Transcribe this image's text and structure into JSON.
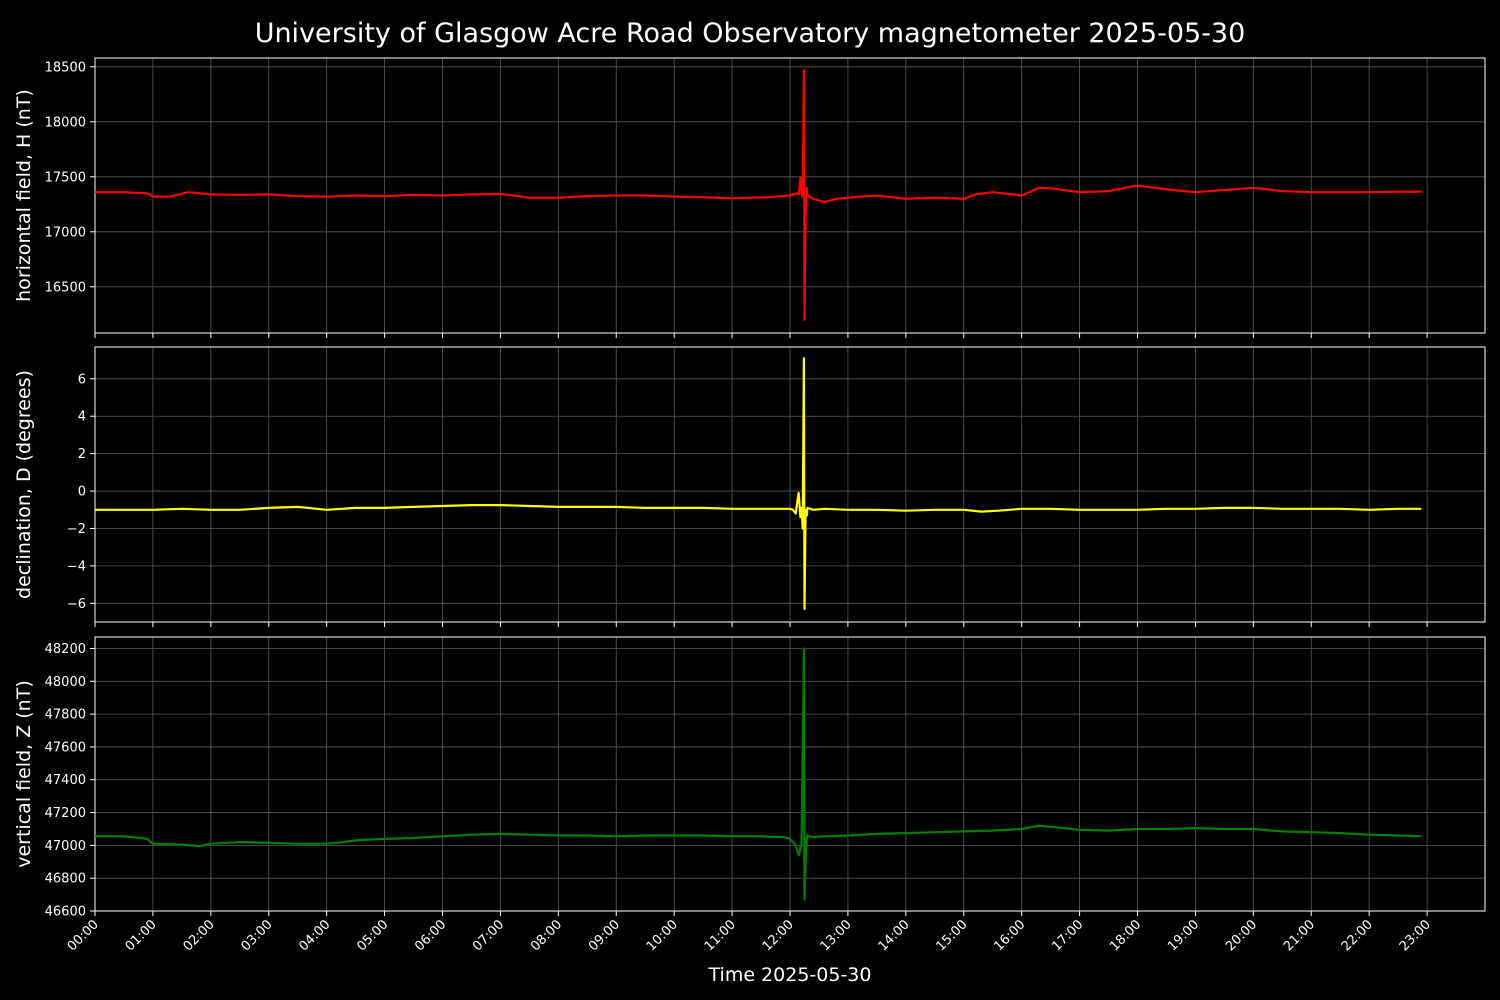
{
  "chart_data": {
    "type": "line",
    "title": "University of Glasgow Acre Road Observatory magnetometer 2025-05-30",
    "xlabel": "Time 2025-05-30",
    "x_unit": "hours",
    "xlim": [
      0,
      24
    ],
    "xticks": [
      "00:00",
      "01:00",
      "02:00",
      "03:00",
      "04:00",
      "05:00",
      "06:00",
      "07:00",
      "08:00",
      "09:00",
      "10:00",
      "11:00",
      "12:00",
      "13:00",
      "14:00",
      "15:00",
      "16:00",
      "17:00",
      "18:00",
      "19:00",
      "20:00",
      "21:00",
      "22:00",
      "23:00"
    ],
    "grid": true,
    "background": "#000000",
    "panels": [
      {
        "name": "horizontal",
        "ylabel": "horizontal field, H (nT)",
        "color": "#ff0000",
        "ylim": [
          16080,
          18580
        ],
        "yticks": [
          16500,
          17000,
          17500,
          18000,
          18500
        ],
        "series": {
          "x": [
            0,
            0.5,
            0.9,
            1.0,
            1.3,
            1.6,
            2.0,
            2.5,
            3.0,
            3.5,
            4.0,
            4.5,
            5.0,
            5.5,
            6.0,
            6.5,
            7.0,
            7.5,
            8.0,
            8.5,
            9.0,
            9.5,
            10.0,
            10.5,
            11.0,
            11.3,
            11.6,
            12.0,
            12.1,
            12.15,
            12.18,
            12.2,
            12.22,
            12.24,
            12.25,
            12.27,
            12.29,
            12.3,
            12.4,
            12.6,
            12.8,
            13.0,
            13.5,
            14.0,
            14.5,
            15.0,
            15.2,
            15.5,
            16.0,
            16.3,
            16.5,
            17.0,
            17.5,
            18.0,
            18.5,
            19.0,
            19.5,
            20.0,
            20.5,
            21.0,
            21.5,
            22.0,
            22.5,
            22.9
          ],
          "y": [
            17360,
            17360,
            17350,
            17320,
            17320,
            17360,
            17340,
            17335,
            17340,
            17325,
            17320,
            17330,
            17325,
            17335,
            17330,
            17340,
            17345,
            17310,
            17310,
            17325,
            17330,
            17330,
            17320,
            17315,
            17305,
            17310,
            17315,
            17330,
            17350,
            17340,
            17490,
            17340,
            17320,
            18470,
            16200,
            17150,
            17400,
            17330,
            17300,
            17270,
            17300,
            17310,
            17330,
            17300,
            17310,
            17300,
            17340,
            17360,
            17330,
            17400,
            17395,
            17360,
            17370,
            17420,
            17385,
            17360,
            17380,
            17400,
            17370,
            17360,
            17360,
            17360,
            17365,
            17365
          ]
        }
      },
      {
        "name": "declination",
        "ylabel": "declination, D (degrees)",
        "color": "#ffff00",
        "ylim": [
          -7.0,
          7.7
        ],
        "yticks": [
          -6,
          -4,
          -2,
          0,
          2,
          4,
          6
        ],
        "series": {
          "x": [
            0,
            0.5,
            1.0,
            1.5,
            2.0,
            2.5,
            3.0,
            3.5,
            4.0,
            4.5,
            5.0,
            5.5,
            6.0,
            6.5,
            7.0,
            7.5,
            8.0,
            8.5,
            9.0,
            9.5,
            10.0,
            10.5,
            11.0,
            11.5,
            12.0,
            12.05,
            12.1,
            12.13,
            12.15,
            12.18,
            12.2,
            12.22,
            12.24,
            12.25,
            12.27,
            12.29,
            12.3,
            12.4,
            12.6,
            13.0,
            13.5,
            14.0,
            14.5,
            15.0,
            15.3,
            15.6,
            16.0,
            16.5,
            17.0,
            17.5,
            18.0,
            18.5,
            19.0,
            19.5,
            20.0,
            20.5,
            21.0,
            21.5,
            22.0,
            22.5,
            22.9
          ],
          "y": [
            -1.0,
            -1.0,
            -1.0,
            -0.95,
            -1.0,
            -1.0,
            -0.9,
            -0.85,
            -1.0,
            -0.9,
            -0.9,
            -0.85,
            -0.8,
            -0.75,
            -0.75,
            -0.8,
            -0.85,
            -0.85,
            -0.85,
            -0.9,
            -0.9,
            -0.9,
            -0.95,
            -0.95,
            -0.95,
            -1.0,
            -1.2,
            -0.5,
            -0.1,
            -1.4,
            -0.9,
            -2.0,
            7.1,
            -6.3,
            -1.0,
            -1.3,
            -0.9,
            -1.0,
            -0.95,
            -1.0,
            -1.0,
            -1.05,
            -1.0,
            -1.0,
            -1.1,
            -1.05,
            -0.95,
            -0.95,
            -1.0,
            -1.0,
            -1.0,
            -0.95,
            -0.95,
            -0.9,
            -0.9,
            -0.95,
            -0.95,
            -0.95,
            -1.0,
            -0.95,
            -0.95
          ]
        }
      },
      {
        "name": "vertical",
        "ylabel": "vertical field, Z (nT)",
        "color": "#008000",
        "ylim": [
          46600,
          48270
        ],
        "yticks": [
          46600,
          46800,
          47000,
          47200,
          47400,
          47600,
          47800,
          48000,
          48200
        ],
        "series": {
          "x": [
            0,
            0.5,
            0.9,
            1.0,
            1.5,
            1.8,
            2.0,
            2.5,
            3.0,
            3.5,
            4.0,
            4.3,
            4.5,
            5.0,
            5.5,
            6.0,
            6.5,
            7.0,
            7.5,
            8.0,
            8.5,
            9.0,
            9.5,
            10.0,
            10.5,
            11.0,
            11.5,
            11.9,
            12.0,
            12.1,
            12.15,
            12.2,
            12.24,
            12.25,
            12.27,
            12.29,
            12.3,
            12.4,
            12.6,
            13.0,
            13.5,
            14.0,
            14.5,
            15.0,
            15.5,
            16.0,
            16.3,
            16.6,
            17.0,
            17.5,
            18.0,
            18.5,
            19.0,
            19.5,
            20.0,
            20.5,
            21.0,
            21.5,
            22.0,
            22.5,
            22.9
          ],
          "y": [
            47055,
            47055,
            47040,
            47010,
            47005,
            46995,
            47010,
            47020,
            47015,
            47010,
            47010,
            47020,
            47030,
            47040,
            47045,
            47055,
            47065,
            47070,
            47065,
            47060,
            47060,
            47055,
            47060,
            47060,
            47060,
            47055,
            47055,
            47050,
            47040,
            47000,
            46940,
            47010,
            48200,
            46670,
            46900,
            47040,
            47060,
            47050,
            47055,
            47060,
            47070,
            47075,
            47080,
            47085,
            47090,
            47100,
            47120,
            47110,
            47095,
            47090,
            47100,
            47100,
            47105,
            47100,
            47100,
            47085,
            47080,
            47075,
            47065,
            47060,
            47055
          ]
        }
      }
    ]
  }
}
